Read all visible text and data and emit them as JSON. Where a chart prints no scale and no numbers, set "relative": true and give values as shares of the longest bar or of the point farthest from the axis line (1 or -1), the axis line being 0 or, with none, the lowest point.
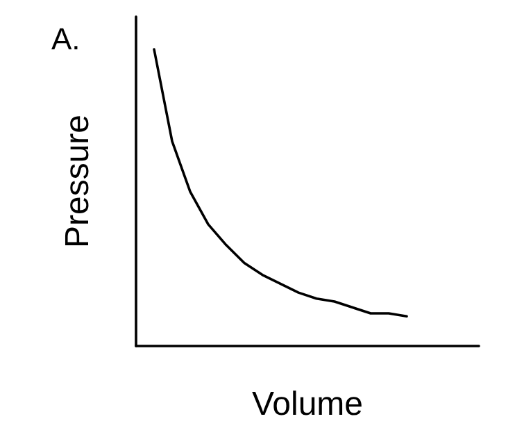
{
  "chart_data": {
    "type": "line",
    "title": "A.",
    "xlabel": "Volume",
    "ylabel": "Pressure",
    "relative": true,
    "marker": "none",
    "line_style": "solid",
    "categories": [
      null,
      null,
      null,
      null,
      null,
      null,
      null,
      null,
      null,
      null,
      null,
      null,
      null,
      null,
      null,
      null,
      null,
      null,
      null,
      null
    ],
    "series": [
      {
        "color": "#000000",
        "values": [
          null,
          1,
          0.69,
          0.52,
          0.41,
          0.34,
          0.28,
          0.24,
          0.21,
          0.18,
          0.16,
          0.15,
          0.13,
          0.11,
          0.11,
          0.1,
          null,
          null,
          null,
          null
        ]
      }
    ]
  }
}
